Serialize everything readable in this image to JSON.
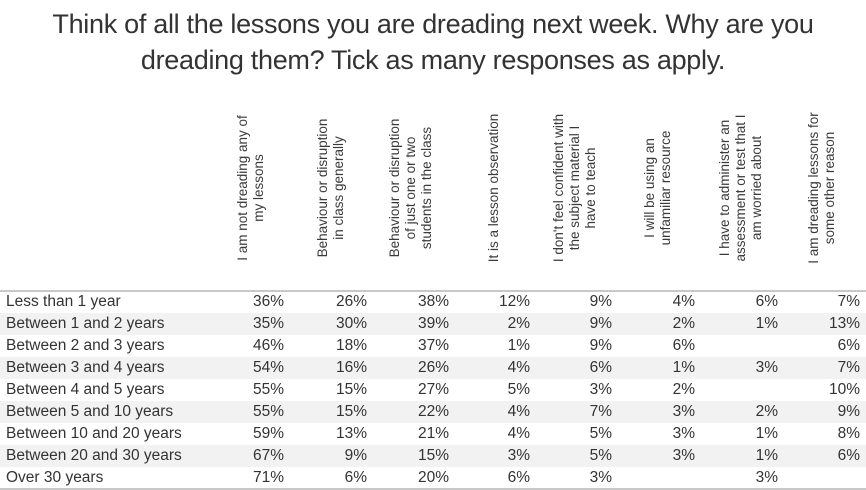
{
  "chart_data": {
    "type": "table",
    "title": "Think of all the lessons you are dreading next week. Why are you dreading them? Tick as many responses as apply.",
    "columns": [
      "I am not dreading any of my lessons",
      "Behaviour or disruption in class generally",
      "Behaviour or disruption of just one or two students in the class",
      "It is a lesson observation",
      "I don't feel confident with the subject material I have to teach",
      "I will be using an unfamiliar resource",
      "I have to administer an assessment or test that I am worried about",
      "I am dreading lessons for some other reason"
    ],
    "rows": [
      {
        "label": "Less than 1 year",
        "values": [
          "36%",
          "26%",
          "38%",
          "12%",
          "9%",
          "4%",
          "6%",
          "7%"
        ]
      },
      {
        "label": "Between 1 and 2 years",
        "values": [
          "35%",
          "30%",
          "39%",
          "2%",
          "9%",
          "2%",
          "1%",
          "13%"
        ]
      },
      {
        "label": "Between 2 and 3 years",
        "values": [
          "46%",
          "18%",
          "37%",
          "1%",
          "9%",
          "6%",
          "",
          "6%"
        ]
      },
      {
        "label": "Between 3 and 4 years",
        "values": [
          "54%",
          "16%",
          "26%",
          "4%",
          "6%",
          "1%",
          "3%",
          "7%"
        ]
      },
      {
        "label": "Between 4 and 5 years",
        "values": [
          "55%",
          "15%",
          "27%",
          "5%",
          "3%",
          "2%",
          "",
          "10%"
        ]
      },
      {
        "label": "Between 5 and 10 years",
        "values": [
          "55%",
          "15%",
          "22%",
          "4%",
          "7%",
          "3%",
          "2%",
          "9%"
        ]
      },
      {
        "label": "Between 10 and 20 years",
        "values": [
          "59%",
          "13%",
          "21%",
          "4%",
          "5%",
          "3%",
          "1%",
          "8%"
        ]
      },
      {
        "label": "Between 20 and 30 years",
        "values": [
          "67%",
          "9%",
          "15%",
          "3%",
          "5%",
          "3%",
          "1%",
          "6%"
        ]
      },
      {
        "label": "Over 30 years",
        "values": [
          "71%",
          "6%",
          "20%",
          "6%",
          "3%",
          "",
          "3%",
          ""
        ]
      }
    ]
  },
  "title_line1": "Think of all the lessons you are dreading next week. Why are you",
  "title_line2": "dreading them? Tick as many responses as apply.",
  "header_lines": [
    [
      "I am not dreading any of",
      "my lessons"
    ],
    [
      "Behaviour or disruption",
      "in class generally"
    ],
    [
      "Behaviour or disruption",
      "of just one or two",
      "students in the class"
    ],
    [
      "It is a lesson observation"
    ],
    [
      "I don't feel confident with",
      "the subject material I",
      "have to teach"
    ],
    [
      "I will be using an",
      "unfamiliar resource"
    ],
    [
      "I have to administer an",
      "assessment or test that I",
      "am worried about"
    ],
    [
      "I am dreading lessons for",
      "some other reason"
    ]
  ]
}
